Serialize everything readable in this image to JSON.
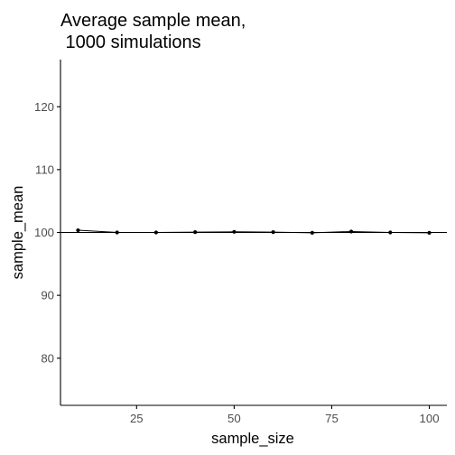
{
  "chart_data": {
    "type": "line",
    "title_lines": [
      "Average sample mean,",
      " 1000 simulations"
    ],
    "xlabel": "sample_size",
    "ylabel": "sample_mean",
    "xlim": [
      5.5,
      104.5
    ],
    "ylim": [
      72.5,
      127.5
    ],
    "x_ticks": [
      25,
      50,
      75,
      100
    ],
    "y_ticks": [
      80,
      90,
      100,
      110,
      120
    ],
    "reference_line": {
      "y": 100
    },
    "series": [
      {
        "x": [
          10,
          20,
          30,
          40,
          50,
          60,
          70,
          80,
          90,
          100
        ],
        "values": [
          100.35,
          100.0,
          100.0,
          100.05,
          100.1,
          100.05,
          99.95,
          100.15,
          100.0,
          99.95
        ]
      }
    ],
    "grid": false,
    "colors": {
      "line": "#000000",
      "point": "#000000",
      "axis": "#000000",
      "tick_label": "#4d4d4d",
      "background": "#ffffff"
    }
  }
}
